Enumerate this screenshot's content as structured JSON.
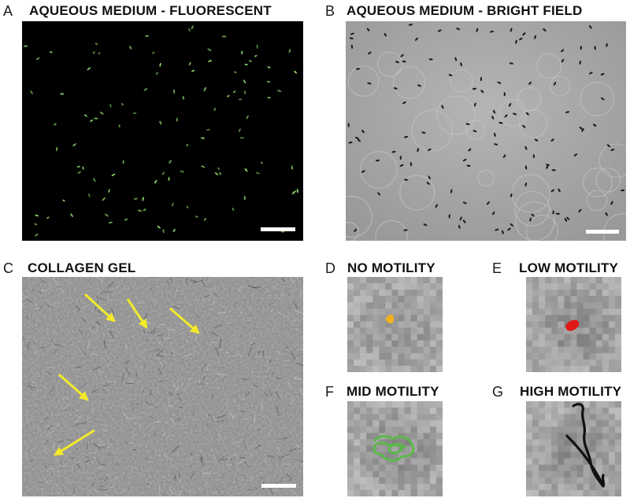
{
  "panels": {
    "a": {
      "letter": "A",
      "title": "AQUEOUS MEDIUM - FLUORESCENT"
    },
    "b": {
      "letter": "B",
      "title": "AQUEOUS MEDIUM - BRIGHT FIELD"
    },
    "c": {
      "letter": "C",
      "title": "COLLAGEN GEL"
    },
    "d": {
      "letter": "D",
      "title": "NO MOTILITY"
    },
    "e": {
      "letter": "E",
      "title": "LOW MOTILITY"
    },
    "f": {
      "letter": "F",
      "title": "MID MOTILITY"
    },
    "g": {
      "letter": "G",
      "title": "HIGH MOTILITY"
    }
  },
  "colors": {
    "fluorescent_cell": "#8fd66a",
    "arrow": "#f2ea2a",
    "no_motility_track": "#f0b020",
    "low_motility_track": "#e01818",
    "mid_motility_track": "#5cb84a",
    "high_motility_track": "#111111",
    "scale_bar": "#ffffff"
  }
}
